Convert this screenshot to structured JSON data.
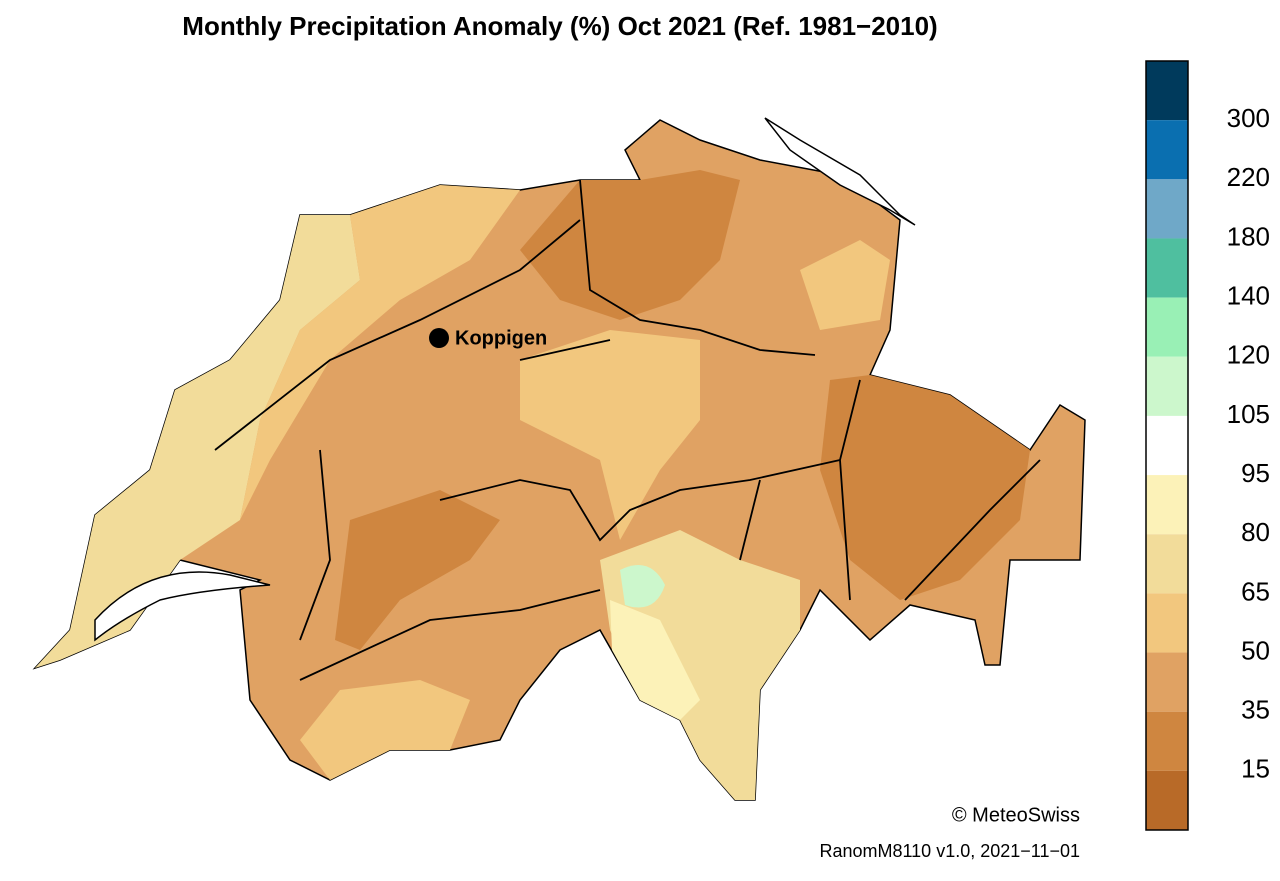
{
  "title": "Monthly Precipitation Anomaly (%) Oct 2021  (Ref. 1981−2010)",
  "colorbar": {
    "colors": [
      "#003a5c",
      "#0a6fb0",
      "#6fa8c8",
      "#4fbf9f",
      "#99f0b5",
      "#ccf7cc",
      "#ffffff",
      "#fcf2b8",
      "#f2dc9a",
      "#f2c77e",
      "#e0a263",
      "#cf8640",
      "#b86a28"
    ],
    "ticks": [
      300,
      220,
      180,
      140,
      120,
      105,
      95,
      80,
      65,
      50,
      35,
      15
    ]
  },
  "location": {
    "label": "Koppigen"
  },
  "credit": "© MeteoSwiss",
  "footer": "RanomM8110 v1.0, 2021−11−01"
}
